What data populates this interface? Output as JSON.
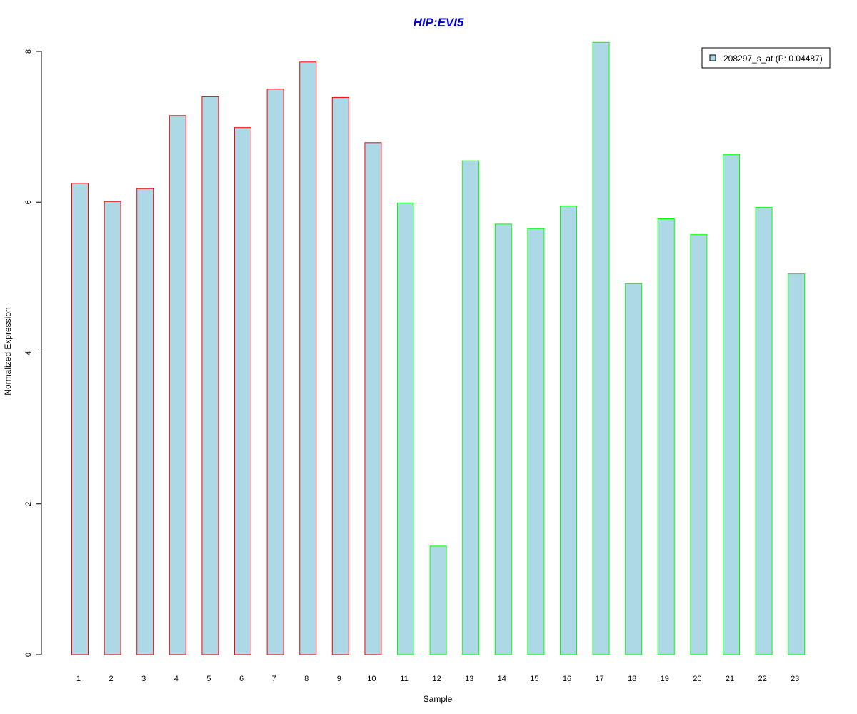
{
  "chart_data": {
    "type": "bar",
    "title": "HIP:EVI5",
    "xlabel": "Sample",
    "ylabel": "Normalized Expression",
    "categories": [
      "1",
      "2",
      "3",
      "4",
      "5",
      "6",
      "7",
      "8",
      "9",
      "10",
      "11",
      "12",
      "13",
      "14",
      "15",
      "16",
      "17",
      "18",
      "19",
      "20",
      "21",
      "22",
      "23"
    ],
    "series": [
      {
        "name": "208297_s_at (P: 0.04487)",
        "values": [
          6.25,
          6.01,
          6.18,
          7.15,
          7.4,
          6.99,
          7.5,
          7.86,
          7.39,
          6.79,
          5.99,
          1.44,
          6.55,
          5.71,
          5.65,
          5.95,
          8.12,
          4.92,
          5.78,
          5.57,
          6.63,
          5.93,
          5.05
        ]
      }
    ],
    "group_borders": [
      "#ff0000",
      "#ff0000",
      "#ff0000",
      "#ff0000",
      "#ff0000",
      "#ff0000",
      "#ff0000",
      "#ff0000",
      "#ff0000",
      "#ff0000",
      "#00ff00",
      "#00ff00",
      "#00ff00",
      "#00ff00",
      "#00ff00",
      "#00ff00",
      "#00ff00",
      "#00ff00",
      "#00ff00",
      "#00ff00",
      "#00ff00",
      "#00ff00",
      "#00ff00"
    ],
    "bar_fill": "#add8e6",
    "title_color": "#0000cc",
    "ylim": [
      0,
      8
    ],
    "yticks": [
      0,
      2,
      4,
      6,
      8
    ],
    "grid": false,
    "legend_position": "top-right"
  }
}
